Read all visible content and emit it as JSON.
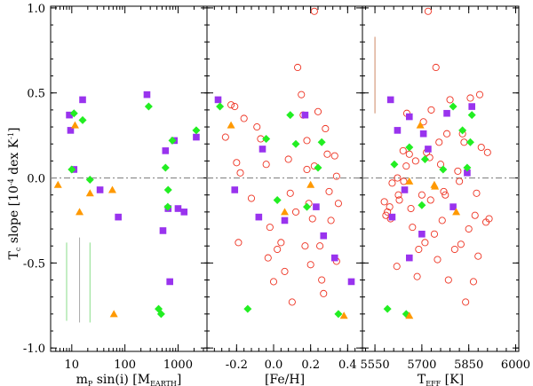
{
  "chart_data": {
    "type": "scatter",
    "ylabel": {
      "main": "T",
      "sub": "c",
      "rest": " slope [10",
      "sup": "-4",
      "tail": " dex K",
      "sup2": "-1",
      "end": "]"
    },
    "ylim": [
      -1.02,
      1.01
    ],
    "yticks": [
      "1.0",
      "0.5",
      "0.0",
      "-0.5",
      "-1.0"
    ],
    "ytick_values": [
      1.0,
      0.5,
      0.0,
      -0.5,
      -1.0
    ],
    "zero_line": true,
    "colors": {
      "purple": "#9933ee",
      "green": "#22ee22",
      "orange": "#ff9900",
      "red": "#ee3322",
      "refline": "#888888"
    },
    "panels": [
      {
        "id": "mass",
        "xscale": "log",
        "xlim": [
          4,
          3500
        ],
        "xlabel": {
          "pre": "m",
          "sub1": "P",
          "mid": " sin(i) [M",
          "sub2": "EARTH",
          "end": "]"
        },
        "xticks": [
          "10",
          "100",
          "1000"
        ],
        "xtick_values": [
          10,
          100,
          1000
        ],
        "error_bars": [
          {
            "x": 8,
            "y0": -0.38,
            "y1": -0.84,
            "color": "#88dd88"
          },
          {
            "x": 14,
            "y0": -0.35,
            "y1": -0.85,
            "color": "#aaaaaa"
          },
          {
            "x": 22,
            "y0": -0.38,
            "y1": -0.85,
            "color": "#88dd88"
          }
        ],
        "purple": [
          [
            9,
            0.37
          ],
          [
            9.5,
            0.28
          ],
          [
            11,
            0.05
          ],
          [
            16,
            0.46
          ],
          [
            34,
            -0.07
          ],
          [
            75,
            -0.23
          ],
          [
            260,
            0.49
          ],
          [
            520,
            -0.31
          ],
          [
            580,
            0.16
          ],
          [
            700,
            -0.61
          ],
          [
            850,
            0.22
          ],
          [
            650,
            -0.18
          ],
          [
            1000,
            -0.18
          ],
          [
            1300,
            -0.2
          ],
          [
            2200,
            0.24
          ]
        ],
        "green": [
          [
            11,
            0.38
          ],
          [
            10,
            0.05
          ],
          [
            16,
            0.34
          ],
          [
            22,
            -0.01
          ],
          [
            280,
            0.42
          ],
          [
            430,
            -0.77
          ],
          [
            480,
            -0.8
          ],
          [
            580,
            0.06
          ],
          [
            650,
            -0.07
          ],
          [
            780,
            0.22
          ],
          [
            640,
            -0.17
          ],
          [
            2200,
            0.28
          ]
        ],
        "orange": [
          [
            5.5,
            -0.04
          ],
          [
            11.5,
            0.31
          ],
          [
            14,
            -0.2
          ],
          [
            22,
            -0.09
          ],
          [
            58,
            -0.07
          ],
          [
            62,
            -0.8
          ]
        ],
        "red_open": []
      },
      {
        "id": "feh",
        "xscale": "linear",
        "xlim": [
          -0.36,
          0.48
        ],
        "xlabel": {
          "text": "[Fe/H]"
        },
        "xticks": [
          "-0.2",
          "0.0",
          "0.2",
          "0.4"
        ],
        "xtick_values": [
          -0.2,
          0.0,
          0.2,
          0.4
        ],
        "error_bars": [],
        "purple": [
          [
            -0.3,
            0.46
          ],
          [
            -0.21,
            -0.07
          ],
          [
            -0.06,
            0.17
          ],
          [
            -0.08,
            -0.23
          ],
          [
            0.06,
            -0.25
          ],
          [
            0.17,
            0.37
          ],
          [
            0.23,
            -0.17
          ],
          [
            0.27,
            -0.34
          ],
          [
            0.33,
            -0.47
          ],
          [
            0.42,
            -0.61
          ]
        ],
        "green": [
          [
            -0.29,
            0.42
          ],
          [
            -0.04,
            0.23
          ],
          [
            0.02,
            -0.13
          ],
          [
            0.09,
            0.37
          ],
          [
            0.12,
            0.2
          ],
          [
            0.18,
            -0.17
          ],
          [
            0.24,
            0.06
          ],
          [
            0.26,
            0.21
          ],
          [
            -0.14,
            -0.77
          ],
          [
            0.35,
            -0.8
          ]
        ],
        "orange": [
          [
            -0.23,
            0.31
          ],
          [
            0.06,
            -0.2
          ],
          [
            0.2,
            -0.04
          ],
          [
            0.38,
            -0.81
          ]
        ],
        "red_open": [
          [
            -0.26,
            0.24
          ],
          [
            -0.21,
            0.42
          ],
          [
            -0.2,
            0.09
          ],
          [
            -0.19,
            -0.38
          ],
          [
            -0.18,
            0.03
          ],
          [
            -0.12,
            -0.12
          ],
          [
            -0.09,
            0.3
          ],
          [
            -0.07,
            0.23
          ],
          [
            -0.04,
            0.08
          ],
          [
            -0.03,
            -0.47
          ],
          [
            -0.02,
            -0.29
          ],
          [
            0.0,
            -0.61
          ],
          [
            0.02,
            -0.42
          ],
          [
            0.04,
            -0.38
          ],
          [
            0.06,
            -0.55
          ],
          [
            0.08,
            0.11
          ],
          [
            0.09,
            -0.09
          ],
          [
            0.1,
            -0.73
          ],
          [
            0.12,
            -0.2
          ],
          [
            0.13,
            0.65
          ],
          [
            0.15,
            0.49
          ],
          [
            0.16,
            0.37
          ],
          [
            0.17,
            -0.4
          ],
          [
            0.18,
            0.22
          ],
          [
            0.18,
            0.05
          ],
          [
            0.19,
            -0.15
          ],
          [
            0.2,
            -0.51
          ],
          [
            0.21,
            -0.24
          ],
          [
            0.22,
            0.07
          ],
          [
            0.22,
            0.98
          ],
          [
            0.24,
            0.39
          ],
          [
            0.25,
            -0.4
          ],
          [
            0.26,
            -0.6
          ],
          [
            0.27,
            -0.68
          ],
          [
            0.28,
            0.29
          ],
          [
            0.29,
            0.14
          ],
          [
            0.3,
            -0.08
          ],
          [
            0.31,
            -0.25
          ],
          [
            0.33,
            0.13
          ],
          [
            0.34,
            0.01
          ],
          [
            0.34,
            -0.49
          ],
          [
            0.35,
            -0.15
          ],
          [
            -0.16,
            0.35
          ],
          [
            -0.23,
            0.43
          ]
        ]
      },
      {
        "id": "teff",
        "xscale": "linear",
        "xlim": [
          5510,
          6010
        ],
        "xlabel": {
          "pre": "T",
          "sub1": "EFF",
          "mid": " [K]"
        },
        "xticks": [
          "5550",
          "5700",
          "5850",
          "6000"
        ],
        "xtick_values": [
          5550,
          5700,
          5850,
          6000
        ],
        "error_bars": [
          {
            "x": 5550,
            "y0": 0.83,
            "y1": 0.38,
            "color": "#cc8866"
          }
        ],
        "purple": [
          [
            5600,
            0.46
          ],
          [
            5605,
            -0.23
          ],
          [
            5622,
            0.28
          ],
          [
            5645,
            -0.07
          ],
          [
            5660,
            -0.47
          ],
          [
            5700,
            -0.33
          ],
          [
            5705,
            0.26
          ],
          [
            5720,
            0.17
          ],
          [
            5780,
            0.38
          ],
          [
            5800,
            -0.17
          ],
          [
            5845,
            0.03
          ],
          [
            5860,
            0.42
          ],
          [
            5660,
            0.36
          ]
        ],
        "green": [
          [
            5590,
            -0.77
          ],
          [
            5612,
            0.08
          ],
          [
            5650,
            -0.8
          ],
          [
            5660,
            0.18
          ],
          [
            5700,
            -0.16
          ],
          [
            5710,
            0.11
          ],
          [
            5768,
            0.05
          ],
          [
            5800,
            0.42
          ],
          [
            5830,
            0.28
          ],
          [
            5845,
            0.06
          ],
          [
            5855,
            0.21
          ],
          [
            5860,
            0.37
          ]
        ],
        "orange": [
          [
            5660,
            -0.81
          ],
          [
            5695,
            0.31
          ],
          [
            5740,
            -0.04
          ],
          [
            5742,
            -0.05
          ],
          [
            5810,
            -0.2
          ],
          [
            5660,
            -0.02
          ]
        ],
        "red_open": [
          [
            5580,
            -0.14
          ],
          [
            5585,
            -0.22
          ],
          [
            5590,
            -0.2
          ],
          [
            5597,
            -0.17
          ],
          [
            5600,
            -0.24
          ],
          [
            5605,
            -0.03
          ],
          [
            5620,
            -0.52
          ],
          [
            5622,
            0.0
          ],
          [
            5625,
            -0.1
          ],
          [
            5628,
            -0.13
          ],
          [
            5640,
            0.16
          ],
          [
            5642,
            -0.02
          ],
          [
            5650,
            0.07
          ],
          [
            5652,
            0.38
          ],
          [
            5660,
            0.14
          ],
          [
            5665,
            -0.18
          ],
          [
            5670,
            -0.29
          ],
          [
            5680,
            0.1
          ],
          [
            5685,
            -0.58
          ],
          [
            5690,
            -0.42
          ],
          [
            5700,
            -0.1
          ],
          [
            5705,
            0.33
          ],
          [
            5710,
            -0.38
          ],
          [
            5715,
            0.15
          ],
          [
            5720,
            0.98
          ],
          [
            5725,
            0.12
          ],
          [
            5728,
            -0.13
          ],
          [
            5730,
            0.4
          ],
          [
            5740,
            -0.33
          ],
          [
            5745,
            0.65
          ],
          [
            5750,
            -0.48
          ],
          [
            5755,
            0.21
          ],
          [
            5760,
            0.08
          ],
          [
            5765,
            -0.25
          ],
          [
            5770,
            -0.08
          ],
          [
            5775,
            -0.1
          ],
          [
            5780,
            0.26
          ],
          [
            5785,
            -0.6
          ],
          [
            5790,
            0.46
          ],
          [
            5805,
            -0.42
          ],
          [
            5815,
            0.04
          ],
          [
            5820,
            -0.02
          ],
          [
            5825,
            -0.39
          ],
          [
            5830,
            0.26
          ],
          [
            5835,
            0.21
          ],
          [
            5840,
            -0.73
          ],
          [
            5850,
            -0.3
          ],
          [
            5855,
            0.47
          ],
          [
            5865,
            -0.61
          ],
          [
            5870,
            -0.22
          ],
          [
            5875,
            -0.09
          ],
          [
            5880,
            -0.46
          ],
          [
            5885,
            0.49
          ],
          [
            5890,
            0.18
          ],
          [
            5905,
            -0.26
          ],
          [
            5910,
            0.15
          ],
          [
            5915,
            -0.24
          ]
        ]
      }
    ]
  }
}
